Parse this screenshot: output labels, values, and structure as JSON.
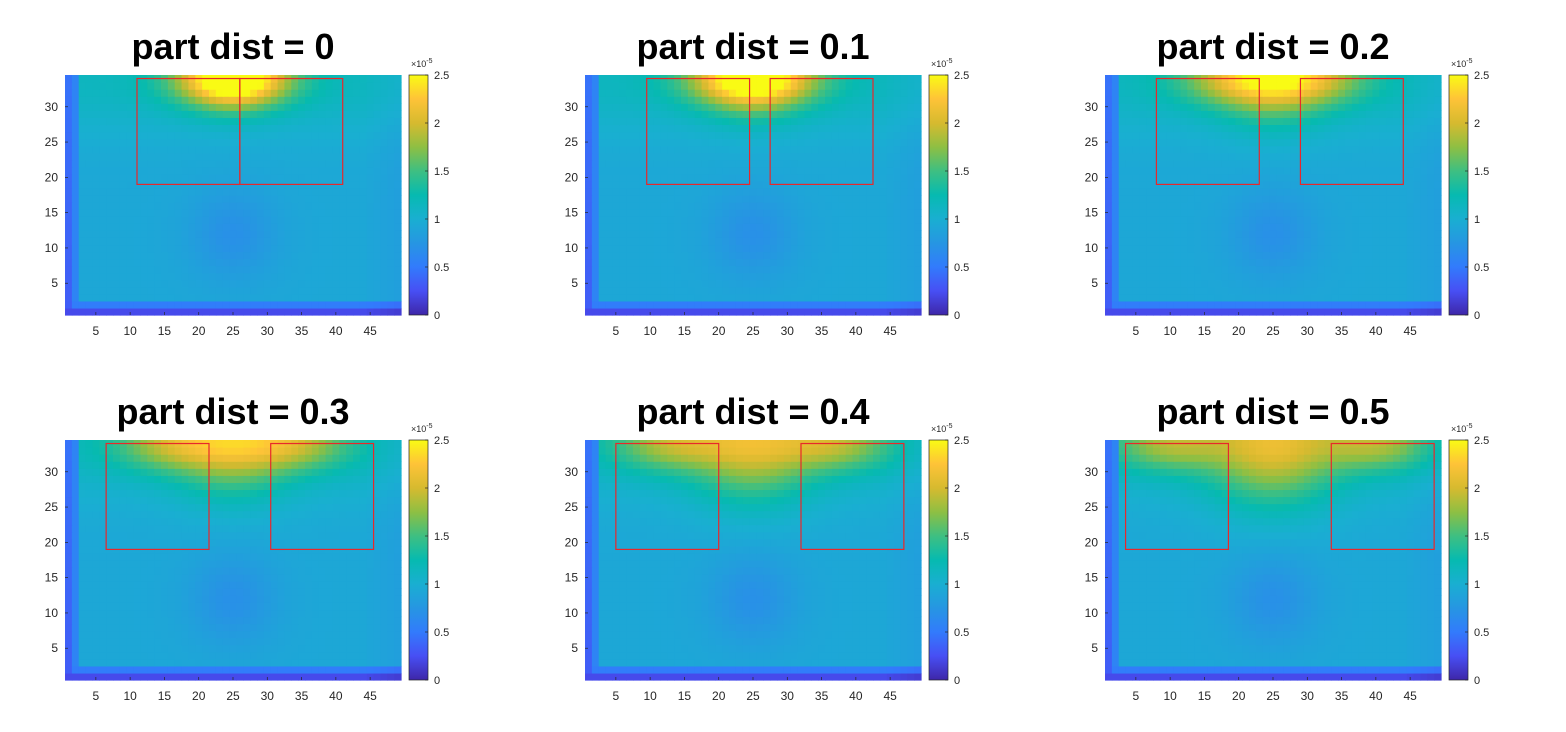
{
  "colormap": "parula",
  "colors": {
    "rect": "#e8282b",
    "axis": "#262626"
  },
  "chart_data": [
    {
      "type": "heatmap",
      "title": "part dist = 0",
      "part_dist": 0,
      "x_range": [
        1,
        49
      ],
      "y_range": [
        1,
        34
      ],
      "xticks": [
        "5",
        "10",
        "15",
        "20",
        "25",
        "30",
        "35",
        "40",
        "45"
      ],
      "yticks": [
        "5",
        "10",
        "15",
        "20",
        "25",
        "30"
      ],
      "colorbar": {
        "range": [
          0,
          2.5
        ],
        "ticks": [
          "0",
          "0.5",
          "1",
          "1.5",
          "2",
          "2.5"
        ],
        "exponent": "×10",
        "exponent_power": "-5"
      },
      "rectangles": [
        {
          "x": [
            11,
            26
          ],
          "y": [
            19,
            34
          ]
        },
        {
          "x": [
            26,
            41
          ],
          "y": [
            19,
            34
          ]
        }
      ]
    },
    {
      "type": "heatmap",
      "title": "part dist = 0.1",
      "part_dist": 0.1,
      "x_range": [
        1,
        49
      ],
      "y_range": [
        1,
        34
      ],
      "xticks": [
        "5",
        "10",
        "15",
        "20",
        "25",
        "30",
        "35",
        "40",
        "45"
      ],
      "yticks": [
        "5",
        "10",
        "15",
        "20",
        "25",
        "30"
      ],
      "colorbar": {
        "range": [
          0,
          2.5
        ],
        "ticks": [
          "0",
          "0.5",
          "1",
          "1.5",
          "2",
          "2.5"
        ],
        "exponent": "×10",
        "exponent_power": "-5"
      },
      "rectangles": [
        {
          "x": [
            9.5,
            24.5
          ],
          "y": [
            19,
            34
          ]
        },
        {
          "x": [
            27.5,
            42.5
          ],
          "y": [
            19,
            34
          ]
        }
      ]
    },
    {
      "type": "heatmap",
      "title": "part dist = 0.2",
      "part_dist": 0.2,
      "x_range": [
        1,
        49
      ],
      "y_range": [
        1,
        34
      ],
      "xticks": [
        "5",
        "10",
        "15",
        "20",
        "25",
        "30",
        "35",
        "40",
        "45"
      ],
      "yticks": [
        "5",
        "10",
        "15",
        "20",
        "25",
        "30"
      ],
      "colorbar": {
        "range": [
          0,
          2.5
        ],
        "ticks": [
          "0",
          "0.5",
          "1",
          "1.5",
          "2",
          "2.5"
        ],
        "exponent": "×10",
        "exponent_power": "-5"
      },
      "rectangles": [
        {
          "x": [
            8,
            23
          ],
          "y": [
            19,
            34
          ]
        },
        {
          "x": [
            29,
            44
          ],
          "y": [
            19,
            34
          ]
        }
      ]
    },
    {
      "type": "heatmap",
      "title": "part dist = 0.3",
      "part_dist": 0.3,
      "x_range": [
        1,
        49
      ],
      "y_range": [
        1,
        34
      ],
      "xticks": [
        "5",
        "10",
        "15",
        "20",
        "25",
        "30",
        "35",
        "40",
        "45"
      ],
      "yticks": [
        "5",
        "10",
        "15",
        "20",
        "25",
        "30"
      ],
      "colorbar": {
        "range": [
          0,
          2.5
        ],
        "ticks": [
          "0",
          "0.5",
          "1",
          "1.5",
          "2",
          "2.5"
        ],
        "exponent": "×10",
        "exponent_power": "-5"
      },
      "rectangles": [
        {
          "x": [
            6.5,
            21.5
          ],
          "y": [
            19,
            34
          ]
        },
        {
          "x": [
            30.5,
            45.5
          ],
          "y": [
            19,
            34
          ]
        }
      ]
    },
    {
      "type": "heatmap",
      "title": "part dist = 0.4",
      "part_dist": 0.4,
      "x_range": [
        1,
        49
      ],
      "y_range": [
        1,
        34
      ],
      "xticks": [
        "5",
        "10",
        "15",
        "20",
        "25",
        "30",
        "35",
        "40",
        "45"
      ],
      "yticks": [
        "5",
        "10",
        "15",
        "20",
        "25",
        "30"
      ],
      "colorbar": {
        "range": [
          0,
          2.5
        ],
        "ticks": [
          "0",
          "0.5",
          "1",
          "1.5",
          "2",
          "2.5"
        ],
        "exponent": "×10",
        "exponent_power": "-5"
      },
      "rectangles": [
        {
          "x": [
            5,
            20
          ],
          "y": [
            19,
            34
          ]
        },
        {
          "x": [
            32,
            47
          ],
          "y": [
            19,
            34
          ]
        }
      ]
    },
    {
      "type": "heatmap",
      "title": "part dist = 0.5",
      "part_dist": 0.5,
      "x_range": [
        1,
        49
      ],
      "y_range": [
        1,
        34
      ],
      "xticks": [
        "5",
        "10",
        "15",
        "20",
        "25",
        "30",
        "35",
        "40",
        "45"
      ],
      "yticks": [
        "5",
        "10",
        "15",
        "20",
        "25",
        "30"
      ],
      "colorbar": {
        "range": [
          0,
          2.5
        ],
        "ticks": [
          "0",
          "0.5",
          "1",
          "1.5",
          "2",
          "2.5"
        ],
        "exponent": "×10",
        "exponent_power": "-5"
      },
      "rectangles": [
        {
          "x": [
            3.5,
            18.5
          ],
          "y": [
            19,
            34
          ]
        },
        {
          "x": [
            33.5,
            48.5
          ],
          "y": [
            19,
            34
          ]
        }
      ]
    }
  ]
}
